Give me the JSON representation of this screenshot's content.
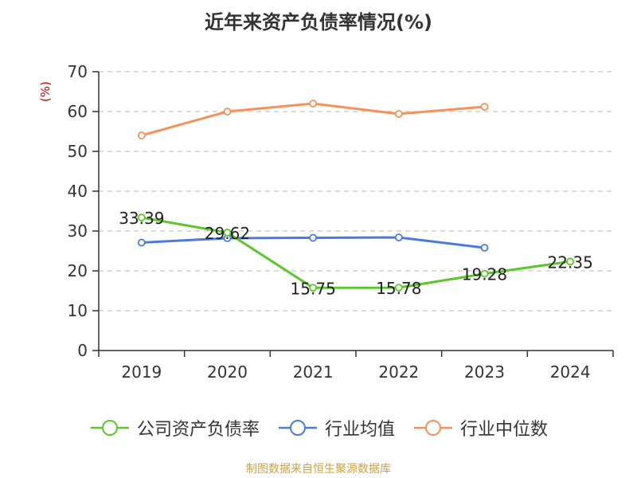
{
  "page_title": "近年来资产负债率情况(%)",
  "source_note": "制图数据来自恒生聚源数据库",
  "chart_data": {
    "type": "line",
    "title": "近年来资产负债率情况(%)",
    "ylabel": "(%)",
    "xlabel": "",
    "categories": [
      "2019",
      "2020",
      "2021",
      "2022",
      "2023",
      "2024"
    ],
    "ylim": [
      0,
      70
    ],
    "yticks": [
      0,
      10,
      20,
      30,
      40,
      50,
      60,
      70
    ],
    "grid": true,
    "legend_position": "bottom",
    "series": [
      {
        "name": "公司资产负债率",
        "color": "#5cc72a",
        "values": [
          33.39,
          29.62,
          15.75,
          15.78,
          19.28,
          22.35
        ],
        "labels": [
          "33.39",
          "29.62",
          "15.75",
          "15.78",
          "19.28",
          "22.35"
        ]
      },
      {
        "name": "行业均值",
        "color": "#4a7bdc",
        "values": [
          27.1,
          28.2,
          28.3,
          28.4,
          25.8,
          null
        ]
      },
      {
        "name": "行业中位数",
        "color": "#f5925a",
        "values": [
          54.0,
          60.0,
          62.0,
          59.4,
          61.2,
          null
        ]
      }
    ]
  }
}
